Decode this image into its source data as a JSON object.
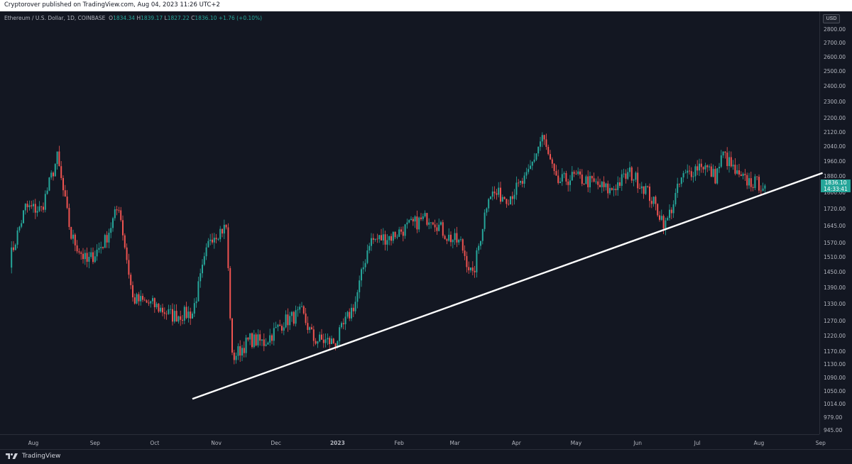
{
  "header": {
    "publish_text": "Cryptorover published on TradingView.com, Aug 04, 2023 11:26 UTC+2"
  },
  "legend": {
    "symbol": "Ethereum / U.S. Dollar, 1D, COINBASE",
    "o_label": "O",
    "open": "1834.34",
    "h_label": "H",
    "high": "1839.17",
    "l_label": "L",
    "low": "1827.22",
    "c_label": "C",
    "close": "1836.10",
    "change": "+1.76 (+0.10%)"
  },
  "currency_button": "USD",
  "price_label": {
    "price": "1836.10",
    "countdown": "14:33:41"
  },
  "footer": {
    "brand": "TradingView"
  },
  "colors": {
    "background": "#131722",
    "up": "#26a69a",
    "down": "#ef5350",
    "trendline": "#ffffff",
    "axis_text": "#b2b5be"
  },
  "icons": [
    "tradingview-logo-icon"
  ],
  "chart_data": {
    "type": "candlestick",
    "symbol": "ETH/USD",
    "interval": "1D",
    "y_scale": "log",
    "y_ticks": [
      "2800.00",
      "2700.00",
      "2600.00",
      "2500.00",
      "2400.00",
      "2300.00",
      "2200.00",
      "2120.00",
      "2040.00",
      "1960.00",
      "1880.00",
      "1800.00",
      "1720.00",
      "1645.00",
      "1570.00",
      "1510.00",
      "1450.00",
      "1390.00",
      "1330.00",
      "1270.00",
      "1220.00",
      "1170.00",
      "1130.00",
      "1090.00",
      "1050.00",
      "1014.00",
      "979.00",
      "945.00"
    ],
    "x_ticks": [
      "Aug",
      "Sep",
      "Oct",
      "Nov",
      "Dec",
      "2023",
      "Feb",
      "Mar",
      "Apr",
      "May",
      "Jun",
      "Jul",
      "Aug",
      "Sep"
    ],
    "approx_daily_closes": [
      {
        "date": "2022-07-20",
        "close": 1500
      },
      {
        "date": "2022-07-28",
        "close": 1730
      },
      {
        "date": "2022-08-05",
        "close": 1720
      },
      {
        "date": "2022-08-13",
        "close": 1980
      },
      {
        "date": "2022-08-20",
        "close": 1600
      },
      {
        "date": "2022-08-28",
        "close": 1490
      },
      {
        "date": "2022-09-06",
        "close": 1580
      },
      {
        "date": "2022-09-13",
        "close": 1740
      },
      {
        "date": "2022-09-20",
        "close": 1350
      },
      {
        "date": "2022-09-30",
        "close": 1330
      },
      {
        "date": "2022-10-10",
        "close": 1290
      },
      {
        "date": "2022-10-20",
        "close": 1300
      },
      {
        "date": "2022-10-29",
        "close": 1600
      },
      {
        "date": "2022-11-06",
        "close": 1640
      },
      {
        "date": "2022-11-09",
        "close": 1150
      },
      {
        "date": "2022-11-18",
        "close": 1210
      },
      {
        "date": "2022-11-25",
        "close": 1200
      },
      {
        "date": "2022-12-05",
        "close": 1270
      },
      {
        "date": "2022-12-14",
        "close": 1300
      },
      {
        "date": "2022-12-20",
        "close": 1210
      },
      {
        "date": "2022-12-31",
        "close": 1200
      },
      {
        "date": "2023-01-10",
        "close": 1340
      },
      {
        "date": "2023-01-17",
        "close": 1580
      },
      {
        "date": "2023-01-28",
        "close": 1600
      },
      {
        "date": "2023-02-07",
        "close": 1650
      },
      {
        "date": "2023-02-17",
        "close": 1690
      },
      {
        "date": "2023-02-25",
        "close": 1600
      },
      {
        "date": "2023-03-04",
        "close": 1570
      },
      {
        "date": "2023-03-10",
        "close": 1430
      },
      {
        "date": "2023-03-18",
        "close": 1800
      },
      {
        "date": "2023-03-28",
        "close": 1780
      },
      {
        "date": "2023-04-06",
        "close": 1870
      },
      {
        "date": "2023-04-14",
        "close": 2100
      },
      {
        "date": "2023-04-21",
        "close": 1850
      },
      {
        "date": "2023-04-30",
        "close": 1880
      },
      {
        "date": "2023-05-09",
        "close": 1850
      },
      {
        "date": "2023-05-18",
        "close": 1810
      },
      {
        "date": "2023-05-28",
        "close": 1900
      },
      {
        "date": "2023-06-05",
        "close": 1820
      },
      {
        "date": "2023-06-15",
        "close": 1650
      },
      {
        "date": "2023-06-23",
        "close": 1870
      },
      {
        "date": "2023-07-03",
        "close": 1950
      },
      {
        "date": "2023-07-10",
        "close": 1880
      },
      {
        "date": "2023-07-14",
        "close": 2000
      },
      {
        "date": "2023-07-22",
        "close": 1870
      },
      {
        "date": "2023-08-04",
        "close": 1836
      }
    ],
    "trendline": {
      "start": {
        "date": "2022-10-20",
        "price": 1030
      },
      "end": {
        "date": "2023-09-02",
        "price": 1900
      }
    },
    "last_price": 1836.1
  }
}
